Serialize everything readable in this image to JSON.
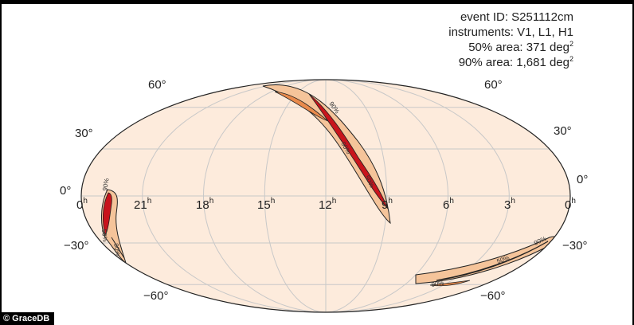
{
  "info": {
    "event_line": "event ID: S251112cm",
    "instruments_line": "instruments: V1, L1, H1",
    "area50_prefix": "50% area: 371 deg",
    "area90_prefix": "90% area: 1,681 deg",
    "area_sup": "2"
  },
  "credit": "© GraceDB",
  "map": {
    "projection": "mollweide",
    "ra_labels": [
      {
        "h": "0",
        "sup": "h",
        "side": "left"
      },
      {
        "h": "21",
        "sup": "h"
      },
      {
        "h": "18",
        "sup": "h"
      },
      {
        "h": "15",
        "sup": "h"
      },
      {
        "h": "12",
        "sup": "h"
      },
      {
        "h": "9",
        "sup": "h"
      },
      {
        "h": "6",
        "sup": "h"
      },
      {
        "h": "3",
        "sup": "h"
      },
      {
        "h": "0",
        "sup": "h",
        "side": "right"
      }
    ],
    "dec_labels": {
      "left": [
        "60°",
        "30°",
        "0°",
        "−30°",
        "−60°"
      ],
      "right": [
        "60°",
        "30°",
        "0°",
        "−30°",
        "−60°"
      ]
    },
    "contour_labels": {
      "c50": "50%",
      "c90": "90%"
    },
    "colors": {
      "background": "#fdebdc",
      "low": "#f5c49a",
      "mid": "#e98a4c",
      "high": "#c8141c",
      "grid": "#c8c8c8",
      "outline": "#222222"
    }
  }
}
